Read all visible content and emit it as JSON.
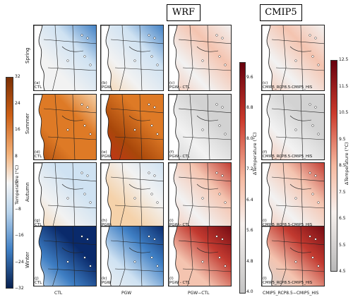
{
  "headers": {
    "wrf": "WRF",
    "cmip5": "CMIP5"
  },
  "seasons": [
    "Spring",
    "Summer",
    "Autumn",
    "Winter"
  ],
  "column_labels": [
    "CTL",
    "PGW",
    "PGW−CTL",
    "CMIP5_RCP8.5−CMIP5_HIS"
  ],
  "panels": [
    {
      "letter": "(a)",
      "label": "CTL"
    },
    {
      "letter": "(b)",
      "label": "PGW"
    },
    {
      "letter": "(c)",
      "label": "PGW - CTL"
    },
    {
      "letter": "(c)",
      "label": "CMIP5_RCP8.5-CMIP5_HIS"
    },
    {
      "letter": "(d)",
      "label": "CTL"
    },
    {
      "letter": "(e)",
      "label": "PGW"
    },
    {
      "letter": "(f)",
      "label": "PGW - CTL"
    },
    {
      "letter": "(f)",
      "label": "CMIP5_RCP8.5-CMIP5_HIS"
    },
    {
      "letter": "(g)",
      "label": "CTL"
    },
    {
      "letter": "(h)",
      "label": "PGW"
    },
    {
      "letter": "(i)",
      "label": "PGW - CTL"
    },
    {
      "letter": "(i)",
      "label": "CMIP5_RCP8.5-CMIP5_HIS"
    },
    {
      "letter": "(j)",
      "label": "CTL"
    },
    {
      "letter": "(k)",
      "label": "PGW"
    },
    {
      "letter": "(l)",
      "label": "PGW - CTL"
    },
    {
      "letter": "(l)",
      "label": "CMIP5_RCP8.5-CMIP5_HIS"
    }
  ],
  "chart_data": [
    {
      "type": "heatmap",
      "title": "",
      "colorbar_label": "Temperature (°C)",
      "colorbar_ticks": [
        32,
        24,
        16,
        8,
        0,
        -8,
        -16,
        -24,
        -32
      ],
      "vlim": [
        -32,
        32
      ],
      "colormap": "blue-white-orange",
      "rows": [
        "Spring",
        "Summer",
        "Autumn",
        "Winter"
      ],
      "columns": [
        "CTL",
        "PGW"
      ],
      "approx_mean_values": [
        [
          -2,
          2
        ],
        [
          14,
          17
        ],
        [
          -2,
          1
        ],
        [
          -20,
          -16
        ]
      ]
    },
    {
      "type": "heatmap",
      "title": "",
      "colorbar_label": "ΔTemperature (°C)",
      "colorbar_ticks": [
        9.6,
        8.8,
        8.0,
        7.2,
        6.4,
        5.6,
        4.8,
        4.0
      ],
      "vlim": [
        4.0,
        10.0
      ],
      "colormap": "grey-white-red",
      "rows": [
        "Spring",
        "Summer",
        "Autumn",
        "Winter"
      ],
      "columns": [
        "PGW−CTL"
      ],
      "approx_mean_values": [
        [
          5.8
        ],
        [
          4.8
        ],
        [
          6.8
        ],
        [
          8.6
        ]
      ]
    },
    {
      "type": "heatmap",
      "title": "",
      "colorbar_label": "ΔTemperature (°C)",
      "colorbar_ticks": [
        12.5,
        11.5,
        10.5,
        9.5,
        8.5,
        7.5,
        6.5,
        5.5,
        4.5
      ],
      "vlim": [
        4.5,
        12.5
      ],
      "colormap": "grey-white-red",
      "rows": [
        "Spring",
        "Summer",
        "Autumn",
        "Winter"
      ],
      "columns": [
        "CMIP5_RCP8.5−CMIP5_HIS"
      ],
      "approx_mean_values": [
        [
          7.5
        ],
        [
          6.0
        ],
        [
          8.0
        ],
        [
          10.5
        ]
      ]
    }
  ],
  "colors": {
    "cold_dark": "#0a2a6b",
    "cold": "#3f7fc4",
    "cold_light": "#cfe2f2",
    "neutral": "#f2f2f2",
    "warm_light": "#f5d2aa",
    "warm": "#de7a26",
    "warm_dark": "#a8470a",
    "grey": "#d2d2d2",
    "red_light": "#f4c4b0",
    "red": "#c23a30",
    "red_dark": "#730a12"
  }
}
